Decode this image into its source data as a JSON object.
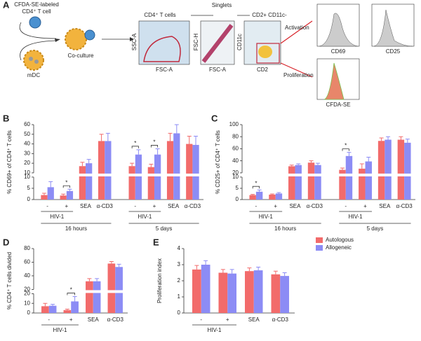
{
  "diagram": {
    "panel": "A",
    "cell_label": [
      "CFDA-SE-labeled",
      "CD4⁺ T cell"
    ],
    "mdc": "mDC",
    "coculture": "Co-culture",
    "gates": [
      "CD4⁺ T cells",
      "Singlets",
      "CD2+ CD11c-"
    ],
    "plot1": {
      "y": "SSC-A",
      "x": "FSC-A"
    },
    "plot2": {
      "y": "FSC-H",
      "x": "FSC-A"
    },
    "plot3": {
      "y": "CD11c",
      "x": "CD2"
    },
    "arrows": [
      "Activation",
      "Proliferation"
    ],
    "histograms": [
      "CD69",
      "CD25",
      "CFDA-SE"
    ]
  },
  "chart_data": [
    {
      "type": "bar",
      "panel": "B",
      "ylabel": "% CD69+ of CD4⁺ T cells",
      "categories": [
        "-",
        "+",
        "SEA",
        "α-CD3",
        "-",
        "+",
        "SEA",
        "α-CD3"
      ],
      "subgroup": "HIV-1",
      "groups": [
        "16 hours",
        "5 days"
      ],
      "series": [
        {
          "color": "#f26b6b",
          "values": [
            2,
            1.8,
            17,
            43,
            17,
            16,
            43,
            40
          ],
          "errors": [
            0.8,
            0.6,
            4,
            7,
            3,
            3,
            8,
            8
          ]
        },
        {
          "color": "#8c8cf5",
          "values": [
            5.5,
            3.8,
            20,
            43,
            29,
            29,
            51,
            39
          ],
          "errors": [
            2.5,
            0.8,
            4,
            8,
            5,
            6,
            9,
            9
          ]
        }
      ],
      "ysegments": [
        {
          "ylim": [
            0,
            10
          ],
          "yticks": [
            0,
            5,
            10
          ]
        },
        {
          "ylim": [
            10,
            60
          ],
          "yticks": [
            10,
            20,
            30,
            40,
            50,
            60
          ]
        }
      ],
      "annotations": [
        "*",
        "*",
        "*"
      ]
    },
    {
      "type": "bar",
      "panel": "C",
      "ylabel": "% CD25+ of CD4⁺ T cells",
      "categories": [
        "-",
        "+",
        "SEA",
        "α-CD3",
        "-",
        "+",
        "SEA",
        "α-CD3"
      ],
      "subgroup": "HIV-1",
      "groups": [
        "16 hours",
        "5 days"
      ],
      "series": [
        {
          "color": "#f26b6b",
          "values": [
            2,
            2.2,
            31,
            37,
            25,
            27,
            73,
            75
          ],
          "errors": [
            0.3,
            0.3,
            2,
            3,
            3,
            8,
            5,
            5
          ]
        },
        {
          "color": "#8c8cf5",
          "values": [
            3.5,
            2.7,
            33,
            33,
            48,
            39,
            75,
            70
          ],
          "errors": [
            0.8,
            0.4,
            2,
            3,
            6,
            7,
            5,
            6
          ]
        }
      ],
      "ysegments": [
        {
          "ylim": [
            0,
            10
          ],
          "yticks": [
            0,
            5,
            10
          ]
        },
        {
          "ylim": [
            20,
            100
          ],
          "yticks": [
            20,
            40,
            60,
            80,
            100
          ]
        }
      ],
      "annotations": [
        "*",
        "*"
      ]
    },
    {
      "type": "bar",
      "panel": "D",
      "ylabel": "% CD4⁺ T cells divided",
      "categories": [
        "-",
        "+",
        "SEA",
        "α-CD3"
      ],
      "subgroup": "HIV-1",
      "series": [
        {
          "color": "#f26b6b",
          "values": [
            7,
            3,
            32,
            58
          ],
          "errors": [
            3,
            1,
            4,
            3
          ]
        },
        {
          "color": "#8c8cf5",
          "values": [
            7.5,
            12,
            32,
            53
          ],
          "errors": [
            1.5,
            5,
            4,
            4
          ]
        }
      ],
      "ysegments": [
        {
          "ylim": [
            0,
            20
          ],
          "yticks": [
            0,
            10,
            20
          ]
        },
        {
          "ylim": [
            20,
            80
          ],
          "yticks": [
            20,
            40,
            60,
            80
          ]
        }
      ],
      "annotations": [
        "*"
      ]
    },
    {
      "type": "bar",
      "panel": "E",
      "ylabel": "Proliferation index",
      "categories": [
        "-",
        "+",
        "SEA",
        "α-CD3"
      ],
      "subgroup": "HIV-1",
      "series": [
        {
          "name": "Autologous",
          "color": "#f26b6b",
          "values": [
            2.7,
            2.5,
            2.6,
            2.4
          ],
          "errors": [
            0.25,
            0.2,
            0.2,
            0.2
          ]
        },
        {
          "name": "Allogeneic",
          "color": "#8c8cf5",
          "values": [
            3.0,
            2.45,
            2.65,
            2.3
          ],
          "errors": [
            0.25,
            0.25,
            0.2,
            0.2
          ]
        }
      ],
      "ylim": [
        0,
        4
      ],
      "yticks": [
        0,
        1,
        2,
        3,
        4
      ],
      "legend": "top-right"
    }
  ]
}
